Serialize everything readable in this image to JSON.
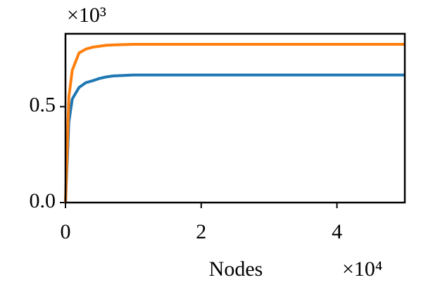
{
  "chart_data": {
    "type": "line",
    "x_label": "Nodes",
    "x_offset_label": "×10⁴",
    "y_offset_label": "×10³",
    "x": [
      0,
      0.05,
      0.1,
      0.2,
      0.3,
      0.4,
      0.5,
      0.6,
      0.7,
      1.0,
      2.0,
      3.0,
      4.0,
      5.0
    ],
    "series": [
      {
        "color": "#1f77b4",
        "values": [
          0,
          0.42,
          0.54,
          0.6,
          0.625,
          0.635,
          0.647,
          0.655,
          0.66,
          0.665,
          0.665,
          0.665,
          0.665,
          0.665
        ]
      },
      {
        "color": "#ff7f0e",
        "values": [
          0,
          0.55,
          0.69,
          0.78,
          0.8,
          0.81,
          0.815,
          0.82,
          0.822,
          0.825,
          0.825,
          0.825,
          0.825,
          0.825
        ]
      }
    ],
    "xlim": [
      0,
      5
    ],
    "ylim": [
      0,
      0.88
    ],
    "xticks": [
      0,
      2,
      4
    ],
    "yticks": [
      {
        "value": 0,
        "label": "0.0"
      },
      0.5
    ]
  }
}
